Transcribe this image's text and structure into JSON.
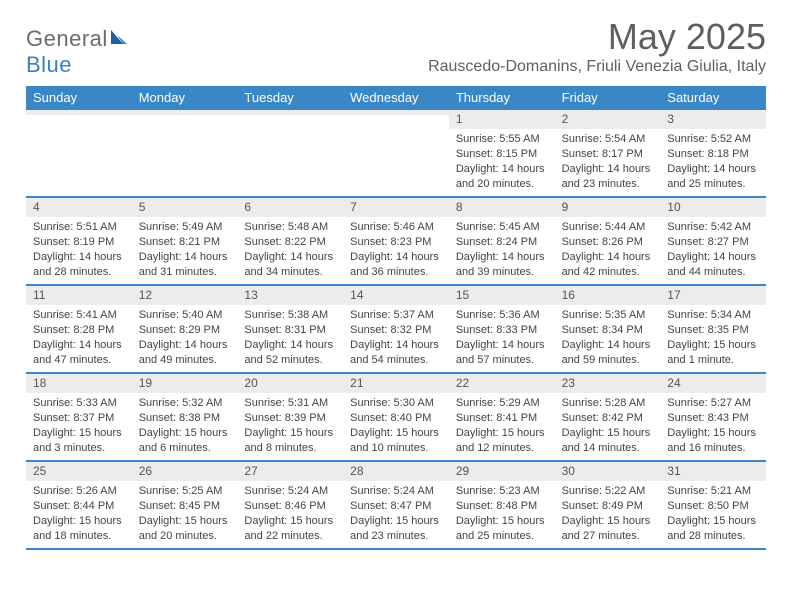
{
  "brand": {
    "part1": "General",
    "part2": "Blue"
  },
  "title": {
    "month": "May 2025",
    "location": "Rauscedo-Domanins, Friuli Venezia Giulia, Italy"
  },
  "colors": {
    "header_bg": "#3a87c7",
    "header_text": "#ffffff",
    "rule": "#3a87c7",
    "daynum_bg": "#ececec",
    "body_text": "#444444",
    "title_text": "#5f5f5f"
  },
  "dow": [
    "Sunday",
    "Monday",
    "Tuesday",
    "Wednesday",
    "Thursday",
    "Friday",
    "Saturday"
  ],
  "weeks": [
    [
      {
        "n": "",
        "sr": "",
        "ss": "",
        "dl": ""
      },
      {
        "n": "",
        "sr": "",
        "ss": "",
        "dl": ""
      },
      {
        "n": "",
        "sr": "",
        "ss": "",
        "dl": ""
      },
      {
        "n": "",
        "sr": "",
        "ss": "",
        "dl": ""
      },
      {
        "n": "1",
        "sr": "Sunrise: 5:55 AM",
        "ss": "Sunset: 8:15 PM",
        "dl": "Daylight: 14 hours and 20 minutes."
      },
      {
        "n": "2",
        "sr": "Sunrise: 5:54 AM",
        "ss": "Sunset: 8:17 PM",
        "dl": "Daylight: 14 hours and 23 minutes."
      },
      {
        "n": "3",
        "sr": "Sunrise: 5:52 AM",
        "ss": "Sunset: 8:18 PM",
        "dl": "Daylight: 14 hours and 25 minutes."
      }
    ],
    [
      {
        "n": "4",
        "sr": "Sunrise: 5:51 AM",
        "ss": "Sunset: 8:19 PM",
        "dl": "Daylight: 14 hours and 28 minutes."
      },
      {
        "n": "5",
        "sr": "Sunrise: 5:49 AM",
        "ss": "Sunset: 8:21 PM",
        "dl": "Daylight: 14 hours and 31 minutes."
      },
      {
        "n": "6",
        "sr": "Sunrise: 5:48 AM",
        "ss": "Sunset: 8:22 PM",
        "dl": "Daylight: 14 hours and 34 minutes."
      },
      {
        "n": "7",
        "sr": "Sunrise: 5:46 AM",
        "ss": "Sunset: 8:23 PM",
        "dl": "Daylight: 14 hours and 36 minutes."
      },
      {
        "n": "8",
        "sr": "Sunrise: 5:45 AM",
        "ss": "Sunset: 8:24 PM",
        "dl": "Daylight: 14 hours and 39 minutes."
      },
      {
        "n": "9",
        "sr": "Sunrise: 5:44 AM",
        "ss": "Sunset: 8:26 PM",
        "dl": "Daylight: 14 hours and 42 minutes."
      },
      {
        "n": "10",
        "sr": "Sunrise: 5:42 AM",
        "ss": "Sunset: 8:27 PM",
        "dl": "Daylight: 14 hours and 44 minutes."
      }
    ],
    [
      {
        "n": "11",
        "sr": "Sunrise: 5:41 AM",
        "ss": "Sunset: 8:28 PM",
        "dl": "Daylight: 14 hours and 47 minutes."
      },
      {
        "n": "12",
        "sr": "Sunrise: 5:40 AM",
        "ss": "Sunset: 8:29 PM",
        "dl": "Daylight: 14 hours and 49 minutes."
      },
      {
        "n": "13",
        "sr": "Sunrise: 5:38 AM",
        "ss": "Sunset: 8:31 PM",
        "dl": "Daylight: 14 hours and 52 minutes."
      },
      {
        "n": "14",
        "sr": "Sunrise: 5:37 AM",
        "ss": "Sunset: 8:32 PM",
        "dl": "Daylight: 14 hours and 54 minutes."
      },
      {
        "n": "15",
        "sr": "Sunrise: 5:36 AM",
        "ss": "Sunset: 8:33 PM",
        "dl": "Daylight: 14 hours and 57 minutes."
      },
      {
        "n": "16",
        "sr": "Sunrise: 5:35 AM",
        "ss": "Sunset: 8:34 PM",
        "dl": "Daylight: 14 hours and 59 minutes."
      },
      {
        "n": "17",
        "sr": "Sunrise: 5:34 AM",
        "ss": "Sunset: 8:35 PM",
        "dl": "Daylight: 15 hours and 1 minute."
      }
    ],
    [
      {
        "n": "18",
        "sr": "Sunrise: 5:33 AM",
        "ss": "Sunset: 8:37 PM",
        "dl": "Daylight: 15 hours and 3 minutes."
      },
      {
        "n": "19",
        "sr": "Sunrise: 5:32 AM",
        "ss": "Sunset: 8:38 PM",
        "dl": "Daylight: 15 hours and 6 minutes."
      },
      {
        "n": "20",
        "sr": "Sunrise: 5:31 AM",
        "ss": "Sunset: 8:39 PM",
        "dl": "Daylight: 15 hours and 8 minutes."
      },
      {
        "n": "21",
        "sr": "Sunrise: 5:30 AM",
        "ss": "Sunset: 8:40 PM",
        "dl": "Daylight: 15 hours and 10 minutes."
      },
      {
        "n": "22",
        "sr": "Sunrise: 5:29 AM",
        "ss": "Sunset: 8:41 PM",
        "dl": "Daylight: 15 hours and 12 minutes."
      },
      {
        "n": "23",
        "sr": "Sunrise: 5:28 AM",
        "ss": "Sunset: 8:42 PM",
        "dl": "Daylight: 15 hours and 14 minutes."
      },
      {
        "n": "24",
        "sr": "Sunrise: 5:27 AM",
        "ss": "Sunset: 8:43 PM",
        "dl": "Daylight: 15 hours and 16 minutes."
      }
    ],
    [
      {
        "n": "25",
        "sr": "Sunrise: 5:26 AM",
        "ss": "Sunset: 8:44 PM",
        "dl": "Daylight: 15 hours and 18 minutes."
      },
      {
        "n": "26",
        "sr": "Sunrise: 5:25 AM",
        "ss": "Sunset: 8:45 PM",
        "dl": "Daylight: 15 hours and 20 minutes."
      },
      {
        "n": "27",
        "sr": "Sunrise: 5:24 AM",
        "ss": "Sunset: 8:46 PM",
        "dl": "Daylight: 15 hours and 22 minutes."
      },
      {
        "n": "28",
        "sr": "Sunrise: 5:24 AM",
        "ss": "Sunset: 8:47 PM",
        "dl": "Daylight: 15 hours and 23 minutes."
      },
      {
        "n": "29",
        "sr": "Sunrise: 5:23 AM",
        "ss": "Sunset: 8:48 PM",
        "dl": "Daylight: 15 hours and 25 minutes."
      },
      {
        "n": "30",
        "sr": "Sunrise: 5:22 AM",
        "ss": "Sunset: 8:49 PM",
        "dl": "Daylight: 15 hours and 27 minutes."
      },
      {
        "n": "31",
        "sr": "Sunrise: 5:21 AM",
        "ss": "Sunset: 8:50 PM",
        "dl": "Daylight: 15 hours and 28 minutes."
      }
    ]
  ]
}
